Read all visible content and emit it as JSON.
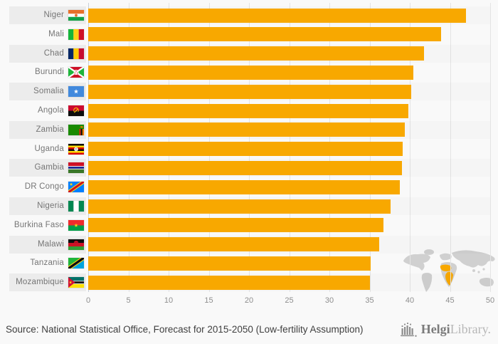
{
  "chart_data": {
    "type": "bar",
    "orientation": "horizontal",
    "title": "",
    "xlabel": "",
    "ylabel": "",
    "xlim": [
      0,
      50
    ],
    "x_ticks": [
      0,
      5,
      10,
      15,
      20,
      25,
      30,
      35,
      40,
      45,
      50
    ],
    "grid": true,
    "bar_color": "#f8a800",
    "categories": [
      "Niger",
      "Mali",
      "Chad",
      "Burundi",
      "Somalia",
      "Angola",
      "Zambia",
      "Uganda",
      "Gambia",
      "DR Congo",
      "Nigeria",
      "Burkina Faso",
      "Malawi",
      "Tanzania",
      "Mozambique"
    ],
    "values": [
      47.0,
      43.9,
      41.8,
      40.4,
      40.2,
      39.8,
      39.4,
      39.1,
      39.0,
      38.8,
      37.6,
      36.7,
      36.2,
      35.1,
      35.0
    ],
    "flags": [
      "niger",
      "mali",
      "chad",
      "burundi",
      "somalia",
      "angola",
      "zambia",
      "uganda",
      "gambia",
      "dr-congo",
      "nigeria",
      "burkina-faso",
      "malawi",
      "tanzania",
      "mozambique"
    ]
  },
  "watermark": {
    "icon": "world-map-africa-highlight-icon",
    "map_color": "#d0d0d0",
    "highlight_color": "#f8a800"
  },
  "footer": {
    "source_text": "Source: National Statistical Office, Forecast for 2015-2050 (Low-fertility Assumption)",
    "logo": {
      "icon": "helgi-bars-icon",
      "brand_primary": "Helgi",
      "brand_secondary": "Library."
    }
  }
}
